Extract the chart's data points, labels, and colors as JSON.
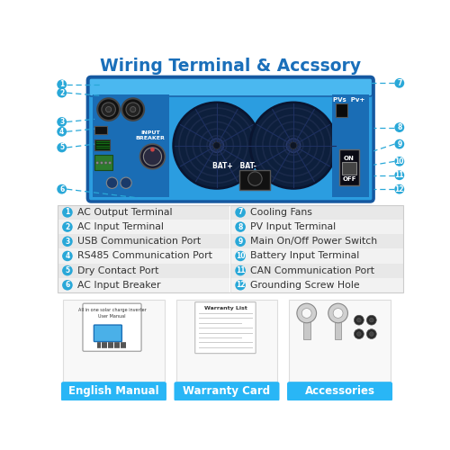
{
  "title": "Wiring Terminal & Accssory",
  "title_color": "#1a6fba",
  "title_fontsize": 13.5,
  "bg_color": "#ffffff",
  "label_color": "#29a8d8",
  "text_color": "#333333",
  "device_color": "#2b9de0",
  "device_dark": "#1a6db5",
  "device_edge": "#1558a0",
  "fan_dark": "#0d1f3c",
  "fan_mid": "#1a2e5a",
  "legend_bg1": "#e8e8e8",
  "legend_bg2": "#f2f2f2",
  "btn_color": "#29b6f6",
  "labels_left": [
    [
      "1",
      "AC Output Terminal"
    ],
    [
      "2",
      "AC Input Terminal"
    ],
    [
      "3",
      "USB Communication Port"
    ],
    [
      "4",
      "RS485 Communication Port"
    ],
    [
      "5",
      "Dry Contact Port"
    ],
    [
      "6",
      "AC Input Breaker"
    ]
  ],
  "labels_right": [
    [
      "7",
      "Cooling Fans"
    ],
    [
      "8",
      "PV Input Terminal"
    ],
    [
      "9",
      "Main On/Off Power Switch"
    ],
    [
      "10",
      "Battery Input Terminal"
    ],
    [
      "11",
      "CAN Communication Port"
    ],
    [
      "12",
      "Grounding Screw Hole"
    ]
  ],
  "accessories": [
    "English Manual",
    "Warranty Card",
    "Accessories"
  ],
  "callouts_left": [
    [
      1,
      8,
      52,
      62,
      46
    ],
    [
      2,
      8,
      63,
      62,
      58
    ],
    [
      3,
      8,
      113,
      62,
      100
    ],
    [
      4,
      8,
      124,
      62,
      115
    ],
    [
      5,
      8,
      144,
      62,
      135
    ],
    [
      6,
      8,
      195,
      130,
      195
    ]
  ],
  "callouts_right": [
    [
      7,
      492,
      48,
      460,
      48
    ],
    [
      8,
      492,
      108,
      460,
      108
    ],
    [
      9,
      492,
      130,
      460,
      140
    ],
    [
      10,
      492,
      152,
      460,
      160
    ],
    [
      11,
      492,
      172,
      460,
      180
    ],
    [
      12,
      492,
      195,
      460,
      195
    ]
  ]
}
